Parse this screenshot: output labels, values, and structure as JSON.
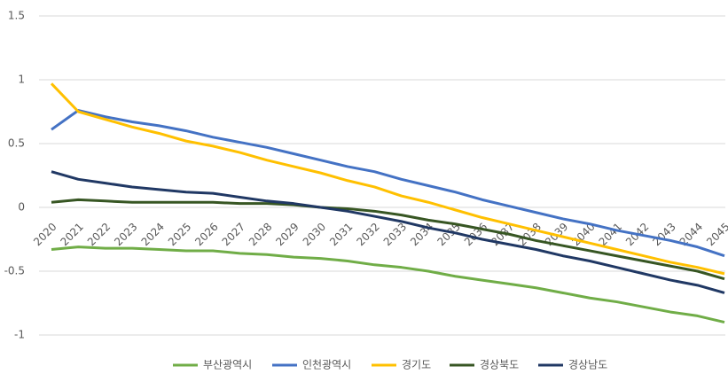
{
  "chart_data": {
    "type": "line",
    "categories": [
      "2020",
      "2021",
      "2022",
      "2023",
      "2024",
      "2025",
      "2026",
      "2027",
      "2028",
      "2029",
      "2030",
      "2031",
      "2032",
      "2033",
      "2034",
      "2035",
      "2036",
      "2037",
      "2038",
      "2039",
      "2040",
      "2041",
      "2042",
      "2043",
      "2044",
      "2045"
    ],
    "series": [
      {
        "name": "부산광역시",
        "color": "#70ad47",
        "values": [
          -0.33,
          -0.31,
          -0.32,
          -0.32,
          -0.33,
          -0.34,
          -0.34,
          -0.36,
          -0.37,
          -0.39,
          -0.4,
          -0.42,
          -0.45,
          -0.47,
          -0.5,
          -0.54,
          -0.57,
          -0.6,
          -0.63,
          -0.67,
          -0.71,
          -0.74,
          -0.78,
          -0.82,
          -0.85,
          -0.9
        ]
      },
      {
        "name": "인천광역시",
        "color": "#4472c4",
        "values": [
          0.61,
          0.76,
          0.71,
          0.67,
          0.64,
          0.6,
          0.55,
          0.51,
          0.47,
          0.42,
          0.37,
          0.32,
          0.28,
          0.22,
          0.17,
          0.12,
          0.06,
          0.01,
          -0.04,
          -0.09,
          -0.13,
          -0.18,
          -0.22,
          -0.26,
          -0.31,
          -0.38
        ]
      },
      {
        "name": "경기도",
        "color": "#ffc000",
        "values": [
          0.97,
          0.75,
          0.69,
          0.63,
          0.58,
          0.52,
          0.48,
          0.43,
          0.37,
          0.32,
          0.27,
          0.21,
          0.16,
          0.09,
          0.04,
          -0.02,
          -0.08,
          -0.13,
          -0.18,
          -0.23,
          -0.28,
          -0.33,
          -0.38,
          -0.43,
          -0.47,
          -0.52
        ]
      },
      {
        "name": "경상북도",
        "color": "#375623",
        "values": [
          0.04,
          0.06,
          0.05,
          0.04,
          0.04,
          0.04,
          0.04,
          0.03,
          0.03,
          0.02,
          0.0,
          -0.01,
          -0.03,
          -0.06,
          -0.1,
          -0.13,
          -0.17,
          -0.21,
          -0.26,
          -0.3,
          -0.34,
          -0.38,
          -0.42,
          -0.46,
          -0.5,
          -0.56
        ]
      },
      {
        "name": "경상남도",
        "color": "#203864",
        "values": [
          0.28,
          0.22,
          0.19,
          0.16,
          0.14,
          0.12,
          0.11,
          0.08,
          0.05,
          0.03,
          0.0,
          -0.03,
          -0.07,
          -0.11,
          -0.16,
          -0.2,
          -0.25,
          -0.29,
          -0.33,
          -0.38,
          -0.42,
          -0.47,
          -0.52,
          -0.57,
          -0.61,
          -0.67
        ]
      }
    ],
    "ylim": [
      -1,
      1.5
    ],
    "yticks": [
      -1,
      -0.5,
      0,
      0.5,
      1,
      1.5
    ],
    "grid": true,
    "legend": "bottom"
  }
}
